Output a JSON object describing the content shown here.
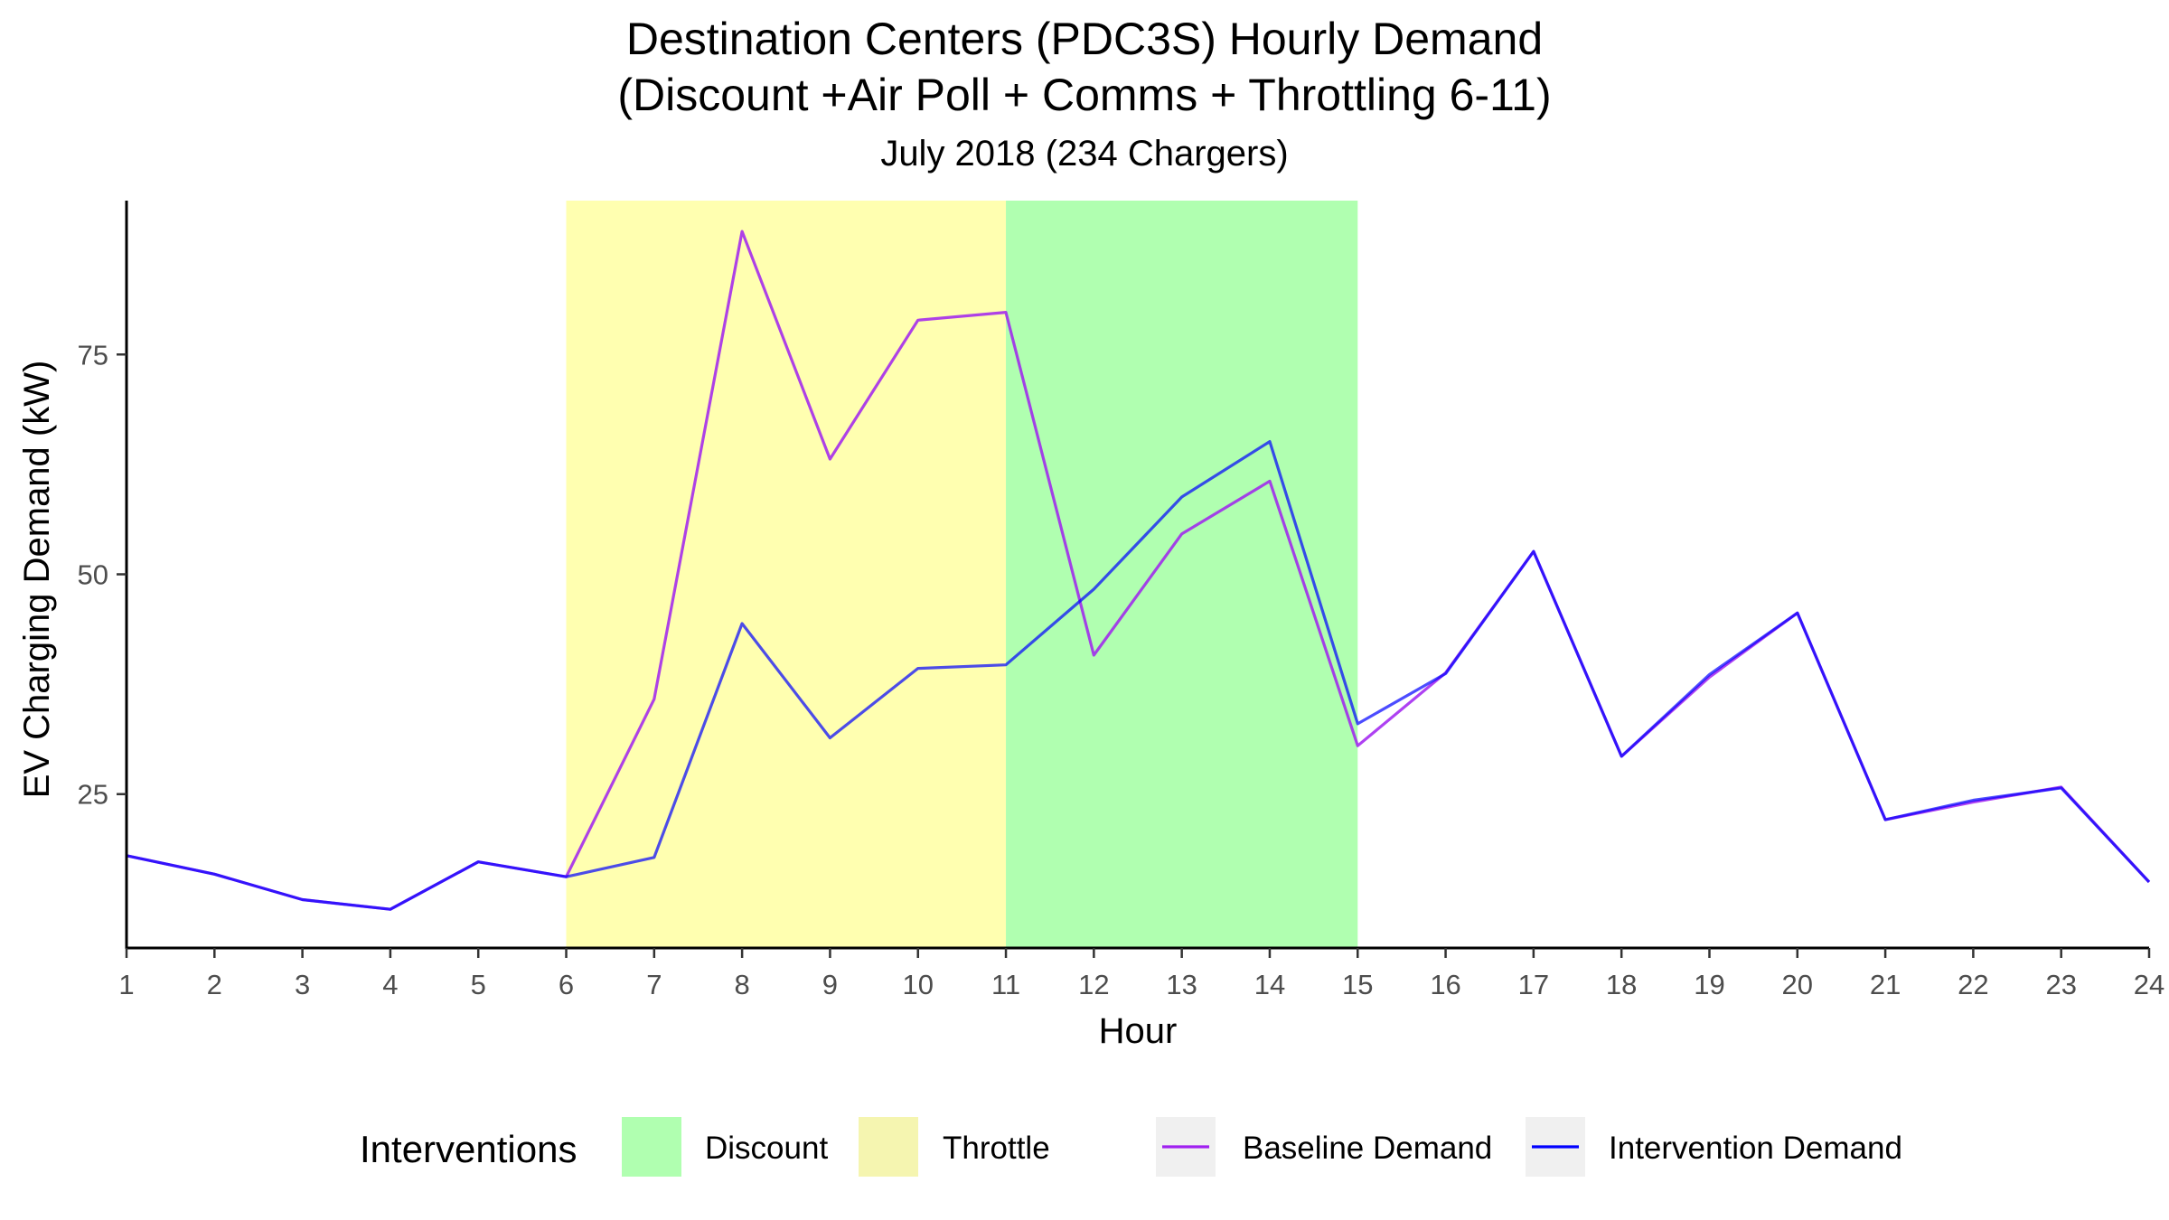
{
  "chart_data": {
    "type": "line",
    "title": "Destination Centers (PDC3S) Hourly Demand",
    "title_line2": "(Discount +Air Poll + Comms + Throttling 6-11)",
    "subtitle": "July 2018 (234 Chargers)",
    "xlabel": "Hour",
    "ylabel": "EV Charging Demand (kW)",
    "x": [
      1,
      2,
      3,
      4,
      5,
      6,
      7,
      8,
      9,
      10,
      11,
      12,
      13,
      14,
      15,
      16,
      17,
      18,
      19,
      20,
      21,
      22,
      23,
      24
    ],
    "xlim": [
      1,
      24
    ],
    "ylim": [
      7.5,
      92.5
    ],
    "yticks": [
      25,
      50,
      75
    ],
    "grid": false,
    "series": [
      {
        "name": "Baseline Demand",
        "color": "#a020f0",
        "values": [
          18.0,
          15.9,
          13.0,
          11.9,
          17.3,
          15.6,
          35.8,
          89.0,
          63.1,
          78.9,
          79.8,
          40.8,
          54.6,
          60.6,
          30.5,
          38.8,
          52.6,
          29.3,
          38.3,
          45.6,
          22.1,
          24.1,
          25.8,
          15.0
        ]
      },
      {
        "name": "Intervention Demand",
        "color": "#0000ff",
        "values": [
          18.0,
          15.9,
          13.0,
          11.9,
          17.3,
          15.6,
          17.8,
          44.4,
          31.4,
          39.3,
          39.7,
          48.3,
          58.8,
          65.1,
          33.0,
          38.7,
          52.6,
          29.3,
          38.6,
          45.6,
          22.1,
          24.3,
          25.7,
          15.0
        ]
      }
    ],
    "bands": [
      {
        "label": "Throttle",
        "from": 6,
        "to": 11,
        "color": "#ffffb0"
      },
      {
        "label": "Discount",
        "from": 11,
        "to": 15,
        "color": "#b0ffb0"
      }
    ],
    "legend": {
      "title": "Interventions",
      "position": "bottom",
      "items": [
        {
          "label": "Discount",
          "kind": "fill",
          "color": "#b0ffb0"
        },
        {
          "label": "Throttle",
          "kind": "fill",
          "color": "#f5f5b0"
        },
        {
          "label": "Baseline Demand",
          "kind": "line",
          "color": "#a020f0"
        },
        {
          "label": "Intervention Demand",
          "kind": "line",
          "color": "#0000ff"
        }
      ]
    }
  }
}
